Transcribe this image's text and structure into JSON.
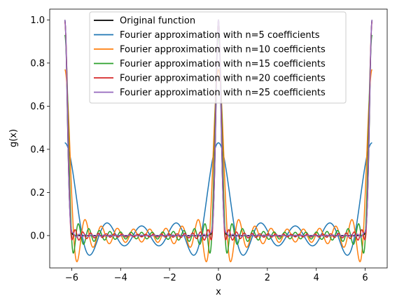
{
  "chart_data": {
    "type": "line",
    "title": "",
    "xlabel": "x",
    "ylabel": "g(x)",
    "xlim": [
      -6.9,
      6.9
    ],
    "ylim": [
      -0.15,
      1.05
    ],
    "xticks": [
      -6,
      -4,
      -2,
      0,
      2,
      4,
      6
    ],
    "yticks": [
      0.0,
      0.2,
      0.4,
      0.6,
      0.8,
      1.0
    ],
    "xtick_labels": [
      "−6",
      "−4",
      "−2",
      "0",
      "2",
      "4",
      "6"
    ],
    "ytick_labels": [
      "0.0",
      "0.2",
      "0.4",
      "0.6",
      "0.8",
      "1.0"
    ],
    "x_domain": [
      -6.2832,
      6.2832
    ],
    "grid": false,
    "legend_position": "top-center",
    "series": [
      {
        "name": "Original function",
        "color": "#000000",
        "kind": "original",
        "peak": 1.0
      },
      {
        "name": "Fourier approximation with n=5 coefficients",
        "color": "#1f77b4",
        "n": 5,
        "peak": 0.43
      },
      {
        "name": "Fourier approximation with n=10 coefficients",
        "color": "#ff7f0e",
        "n": 10,
        "peak": 0.77
      },
      {
        "name": "Fourier approximation with n=15 coefficients",
        "color": "#2ca02c",
        "n": 15,
        "peak": 0.93
      },
      {
        "name": "Fourier approximation with n=20 coefficients",
        "color": "#d62728",
        "n": 20,
        "peak": 0.99
      },
      {
        "name": "Fourier approximation with n=25 coefficients",
        "color": "#9467bd",
        "n": 25,
        "peak": 1.0
      }
    ]
  }
}
